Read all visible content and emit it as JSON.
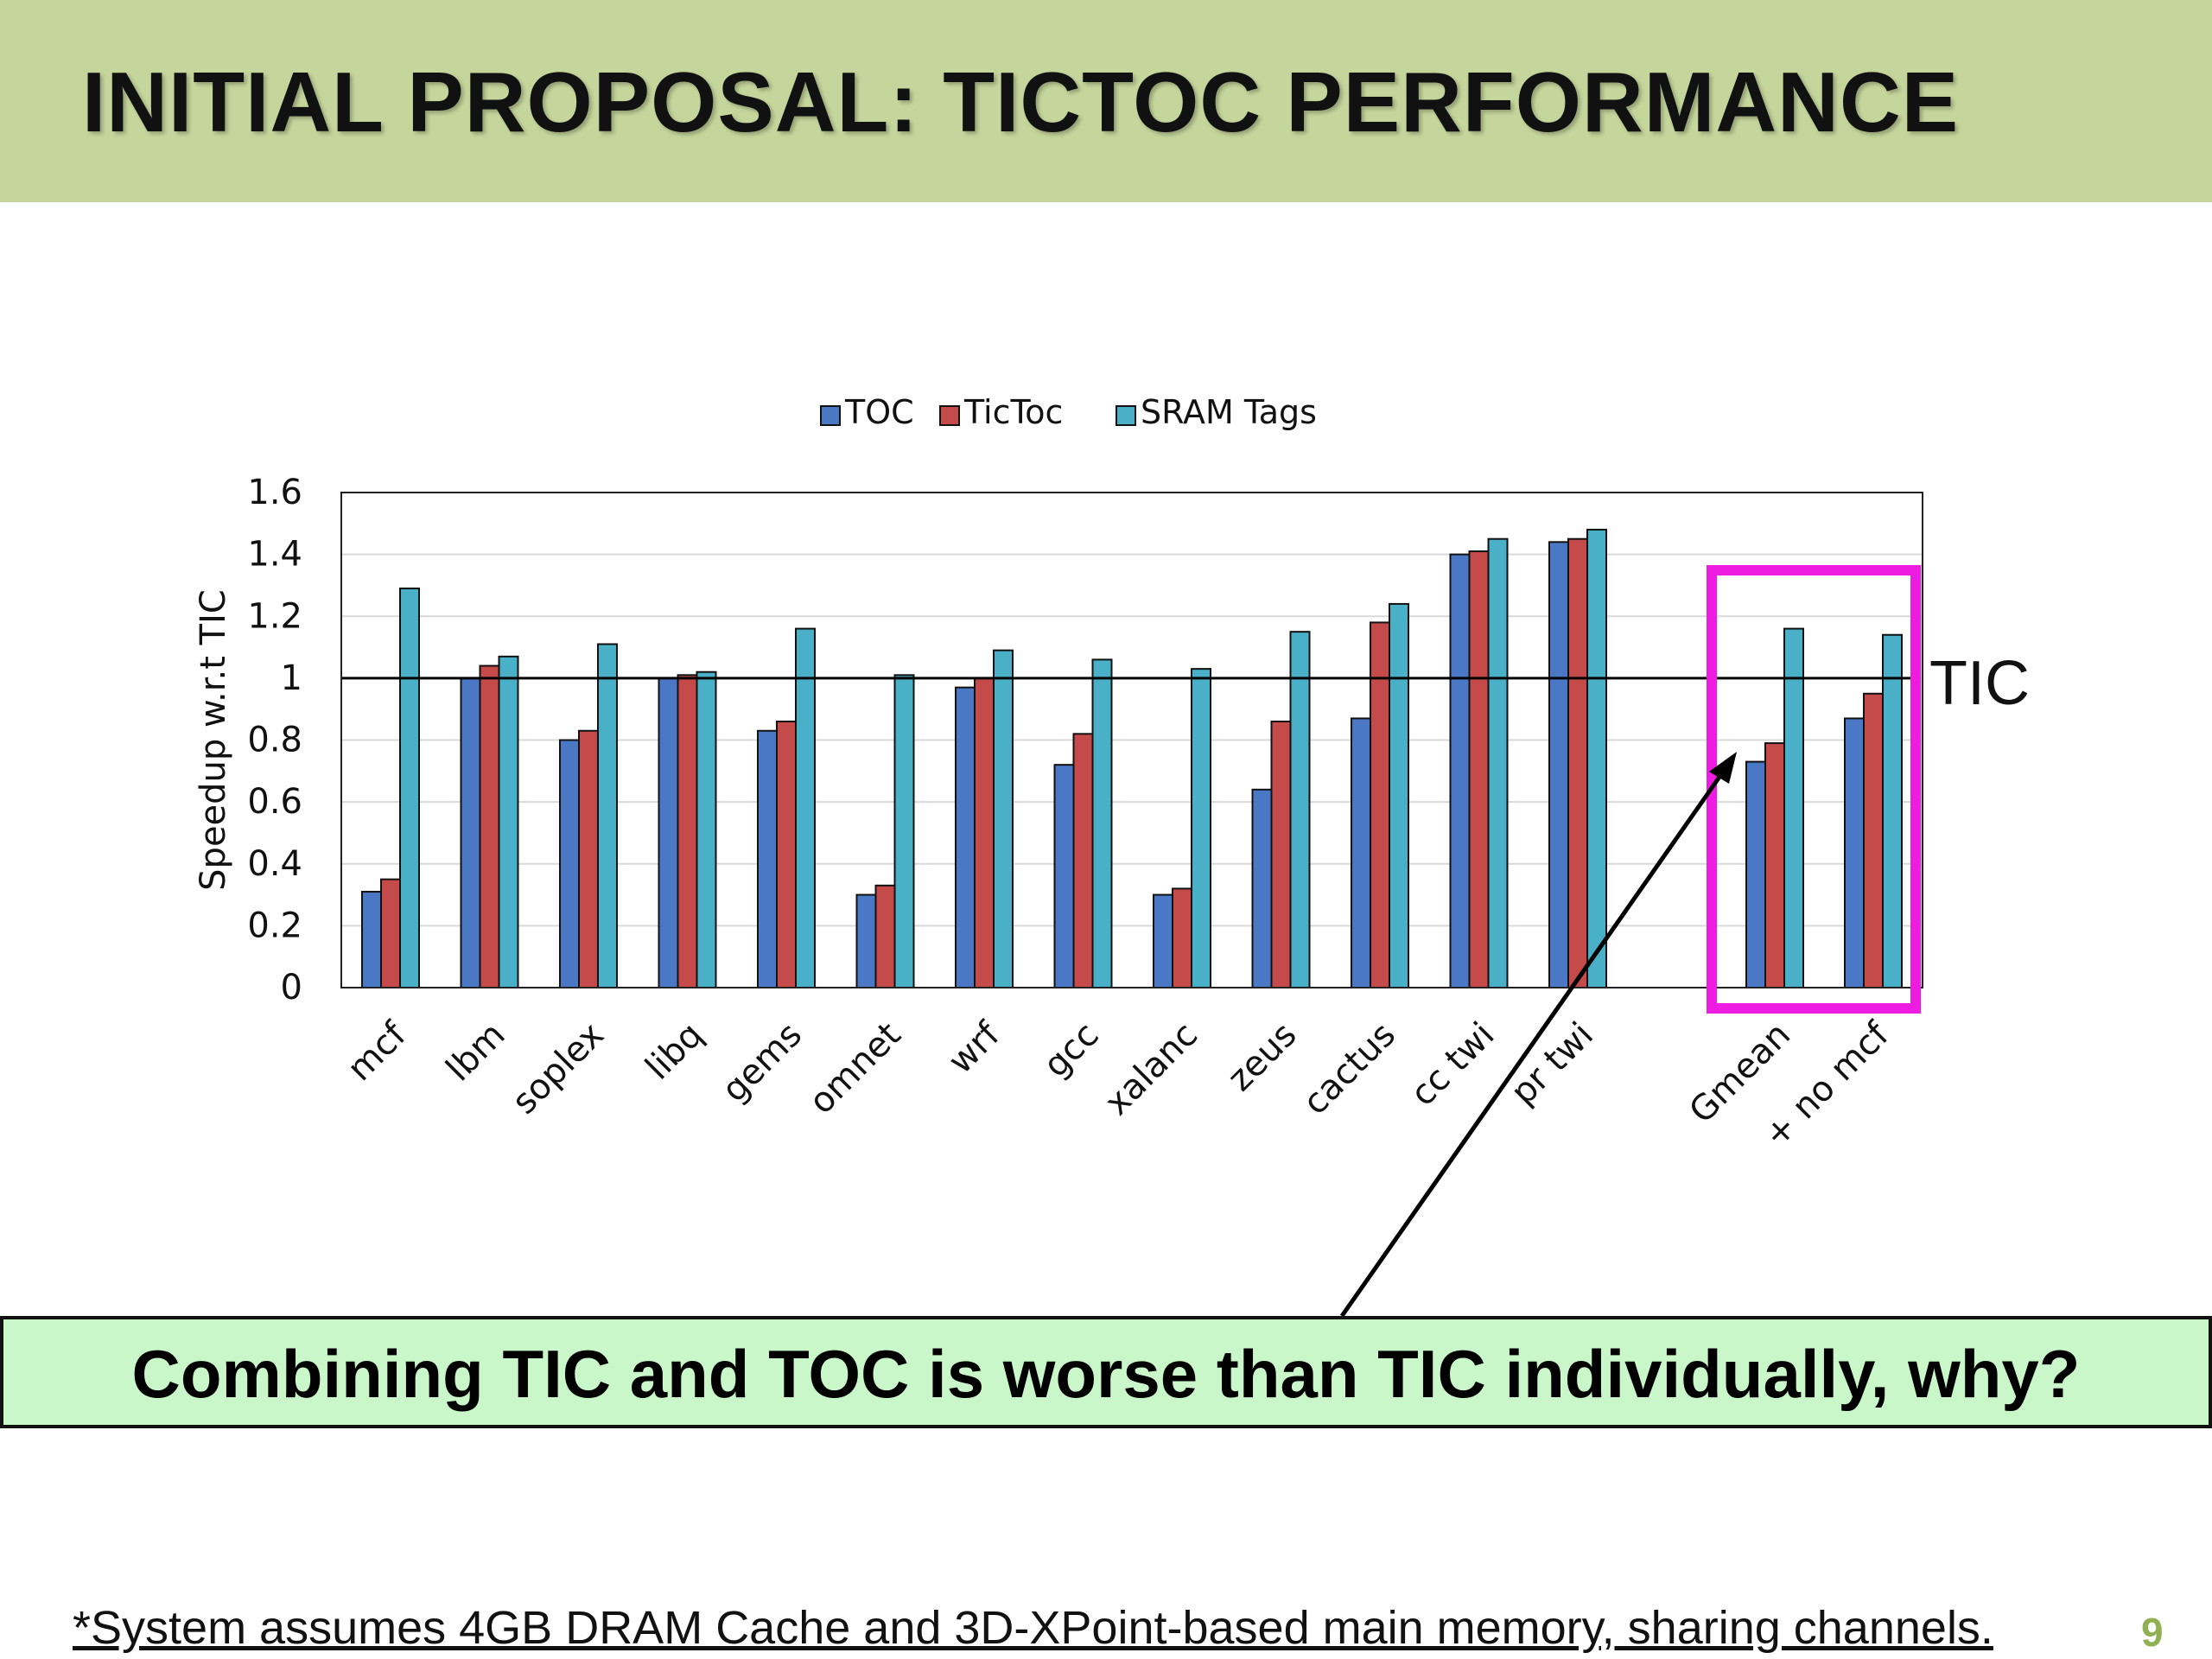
{
  "slide": {
    "title": "INITIAL PROPOSAL: TICTOC PERFORMANCE",
    "callout": "Combining TIC and TOC is worse than TIC individually, why?",
    "footnote": "*System assumes 4GB DRAM Cache and 3D-XPoint-based main memory, sharing channels.",
    "page_number": "9",
    "tic_line_label": "TIC",
    "highlight_color": "#ee1ce0",
    "header_color": "#c5d69c"
  },
  "chart_data": {
    "type": "bar",
    "title": "",
    "xlabel": "",
    "ylabel": "Speedup w.r.t TIC",
    "ylim": [
      0,
      1.6
    ],
    "yticks": [
      "0",
      "0.2",
      "0.4",
      "0.6",
      "0.8",
      "1",
      "1.2",
      "1.4",
      "1.6"
    ],
    "grid": true,
    "legend_position": "top-center",
    "reference_line": 1,
    "categories": [
      "mcf",
      "lbm",
      "soplex",
      "libq",
      "gems",
      "omnet",
      "wrf",
      "gcc",
      "xalanc",
      "zeus",
      "cactus",
      "cc twi",
      "pr twi",
      "Gmean",
      "+ no mcf"
    ],
    "highlighted_categories": [
      "Gmean",
      "+ no mcf"
    ],
    "series": [
      {
        "name": "TOC",
        "color": "#4a78c4",
        "values": [
          0.31,
          1.0,
          0.8,
          1.0,
          0.83,
          0.3,
          0.97,
          0.72,
          0.3,
          0.64,
          0.87,
          1.4,
          1.44,
          0.73,
          0.87
        ]
      },
      {
        "name": "TicToc",
        "color": "#c54b4b",
        "values": [
          0.35,
          1.04,
          0.83,
          1.01,
          0.86,
          0.33,
          1.0,
          0.82,
          0.32,
          0.86,
          1.18,
          1.41,
          1.45,
          0.79,
          0.95
        ]
      },
      {
        "name": "SRAM Tags",
        "color": "#4ab0c8",
        "values": [
          1.29,
          1.07,
          1.11,
          1.02,
          1.16,
          1.01,
          1.09,
          1.06,
          1.03,
          1.15,
          1.24,
          1.45,
          1.48,
          1.16,
          1.14
        ]
      }
    ]
  }
}
